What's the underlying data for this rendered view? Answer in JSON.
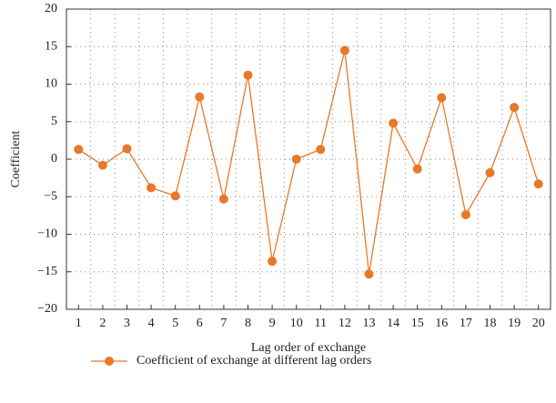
{
  "chart_data": {
    "type": "line",
    "x_label": "Lag order of exchange",
    "y_label": "Coefficient",
    "categories": [
      "1",
      "2",
      "3",
      "4",
      "5",
      "6",
      "7",
      "8",
      "9",
      "10",
      "11",
      "12",
      "13",
      "14",
      "15",
      "16",
      "17",
      "18",
      "19",
      "20"
    ],
    "series": [
      {
        "name": "Coefficient of exchange at different lag orders",
        "color": "#e8782a",
        "values": [
          1.3,
          -0.8,
          1.4,
          -3.8,
          -4.9,
          8.3,
          -5.3,
          11.2,
          -13.6,
          0,
          1.3,
          14.5,
          -15.3,
          4.8,
          -1.3,
          8.2,
          -7.4,
          -1.8,
          6.9,
          -3.3
        ]
      }
    ],
    "ylim": [
      -20,
      20
    ],
    "yticks": [
      {
        "value": -20,
        "label": "−20"
      },
      {
        "value": -15,
        "label": "−15"
      },
      {
        "value": -10,
        "label": "−10"
      },
      {
        "value": -5,
        "label": "−5"
      },
      0,
      5,
      10,
      15,
      20
    ],
    "grid": true,
    "legend": "bottom"
  }
}
